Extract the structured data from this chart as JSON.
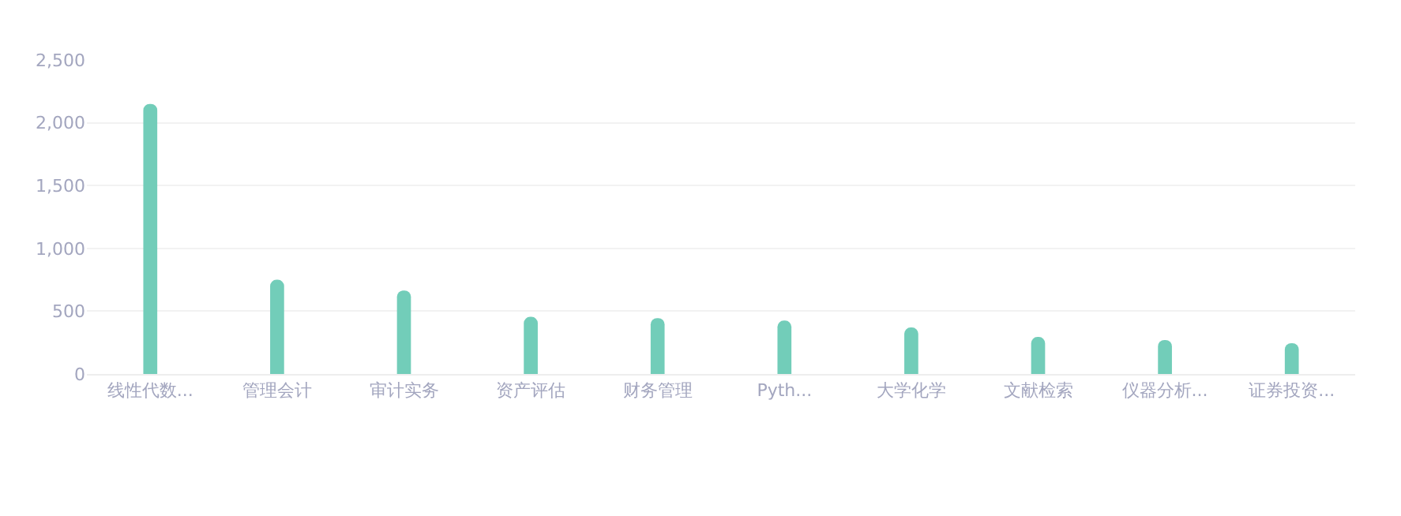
{
  "chart_data": {
    "type": "bar",
    "categories": [
      "线性代数...",
      "管理会计",
      "审计实务",
      "资产评估",
      "财务管理",
      "Pyth...",
      "大学化学",
      "文献检索",
      "仪器分析...",
      "证券投资..."
    ],
    "values": [
      2150,
      750,
      665,
      455,
      445,
      425,
      370,
      295,
      270,
      245
    ],
    "color": "#72cdb9",
    "ylim": [
      0,
      2500
    ],
    "yticks": [
      0,
      {
        "value": 500,
        "label": "500"
      },
      {
        "value": 1000,
        "label": "1,000"
      },
      {
        "value": 1500,
        "label": "1,500"
      },
      {
        "value": 2000,
        "label": "2,000"
      },
      {
        "value": 2500,
        "label": "2,500"
      }
    ],
    "grid": "y",
    "legend": false
  }
}
